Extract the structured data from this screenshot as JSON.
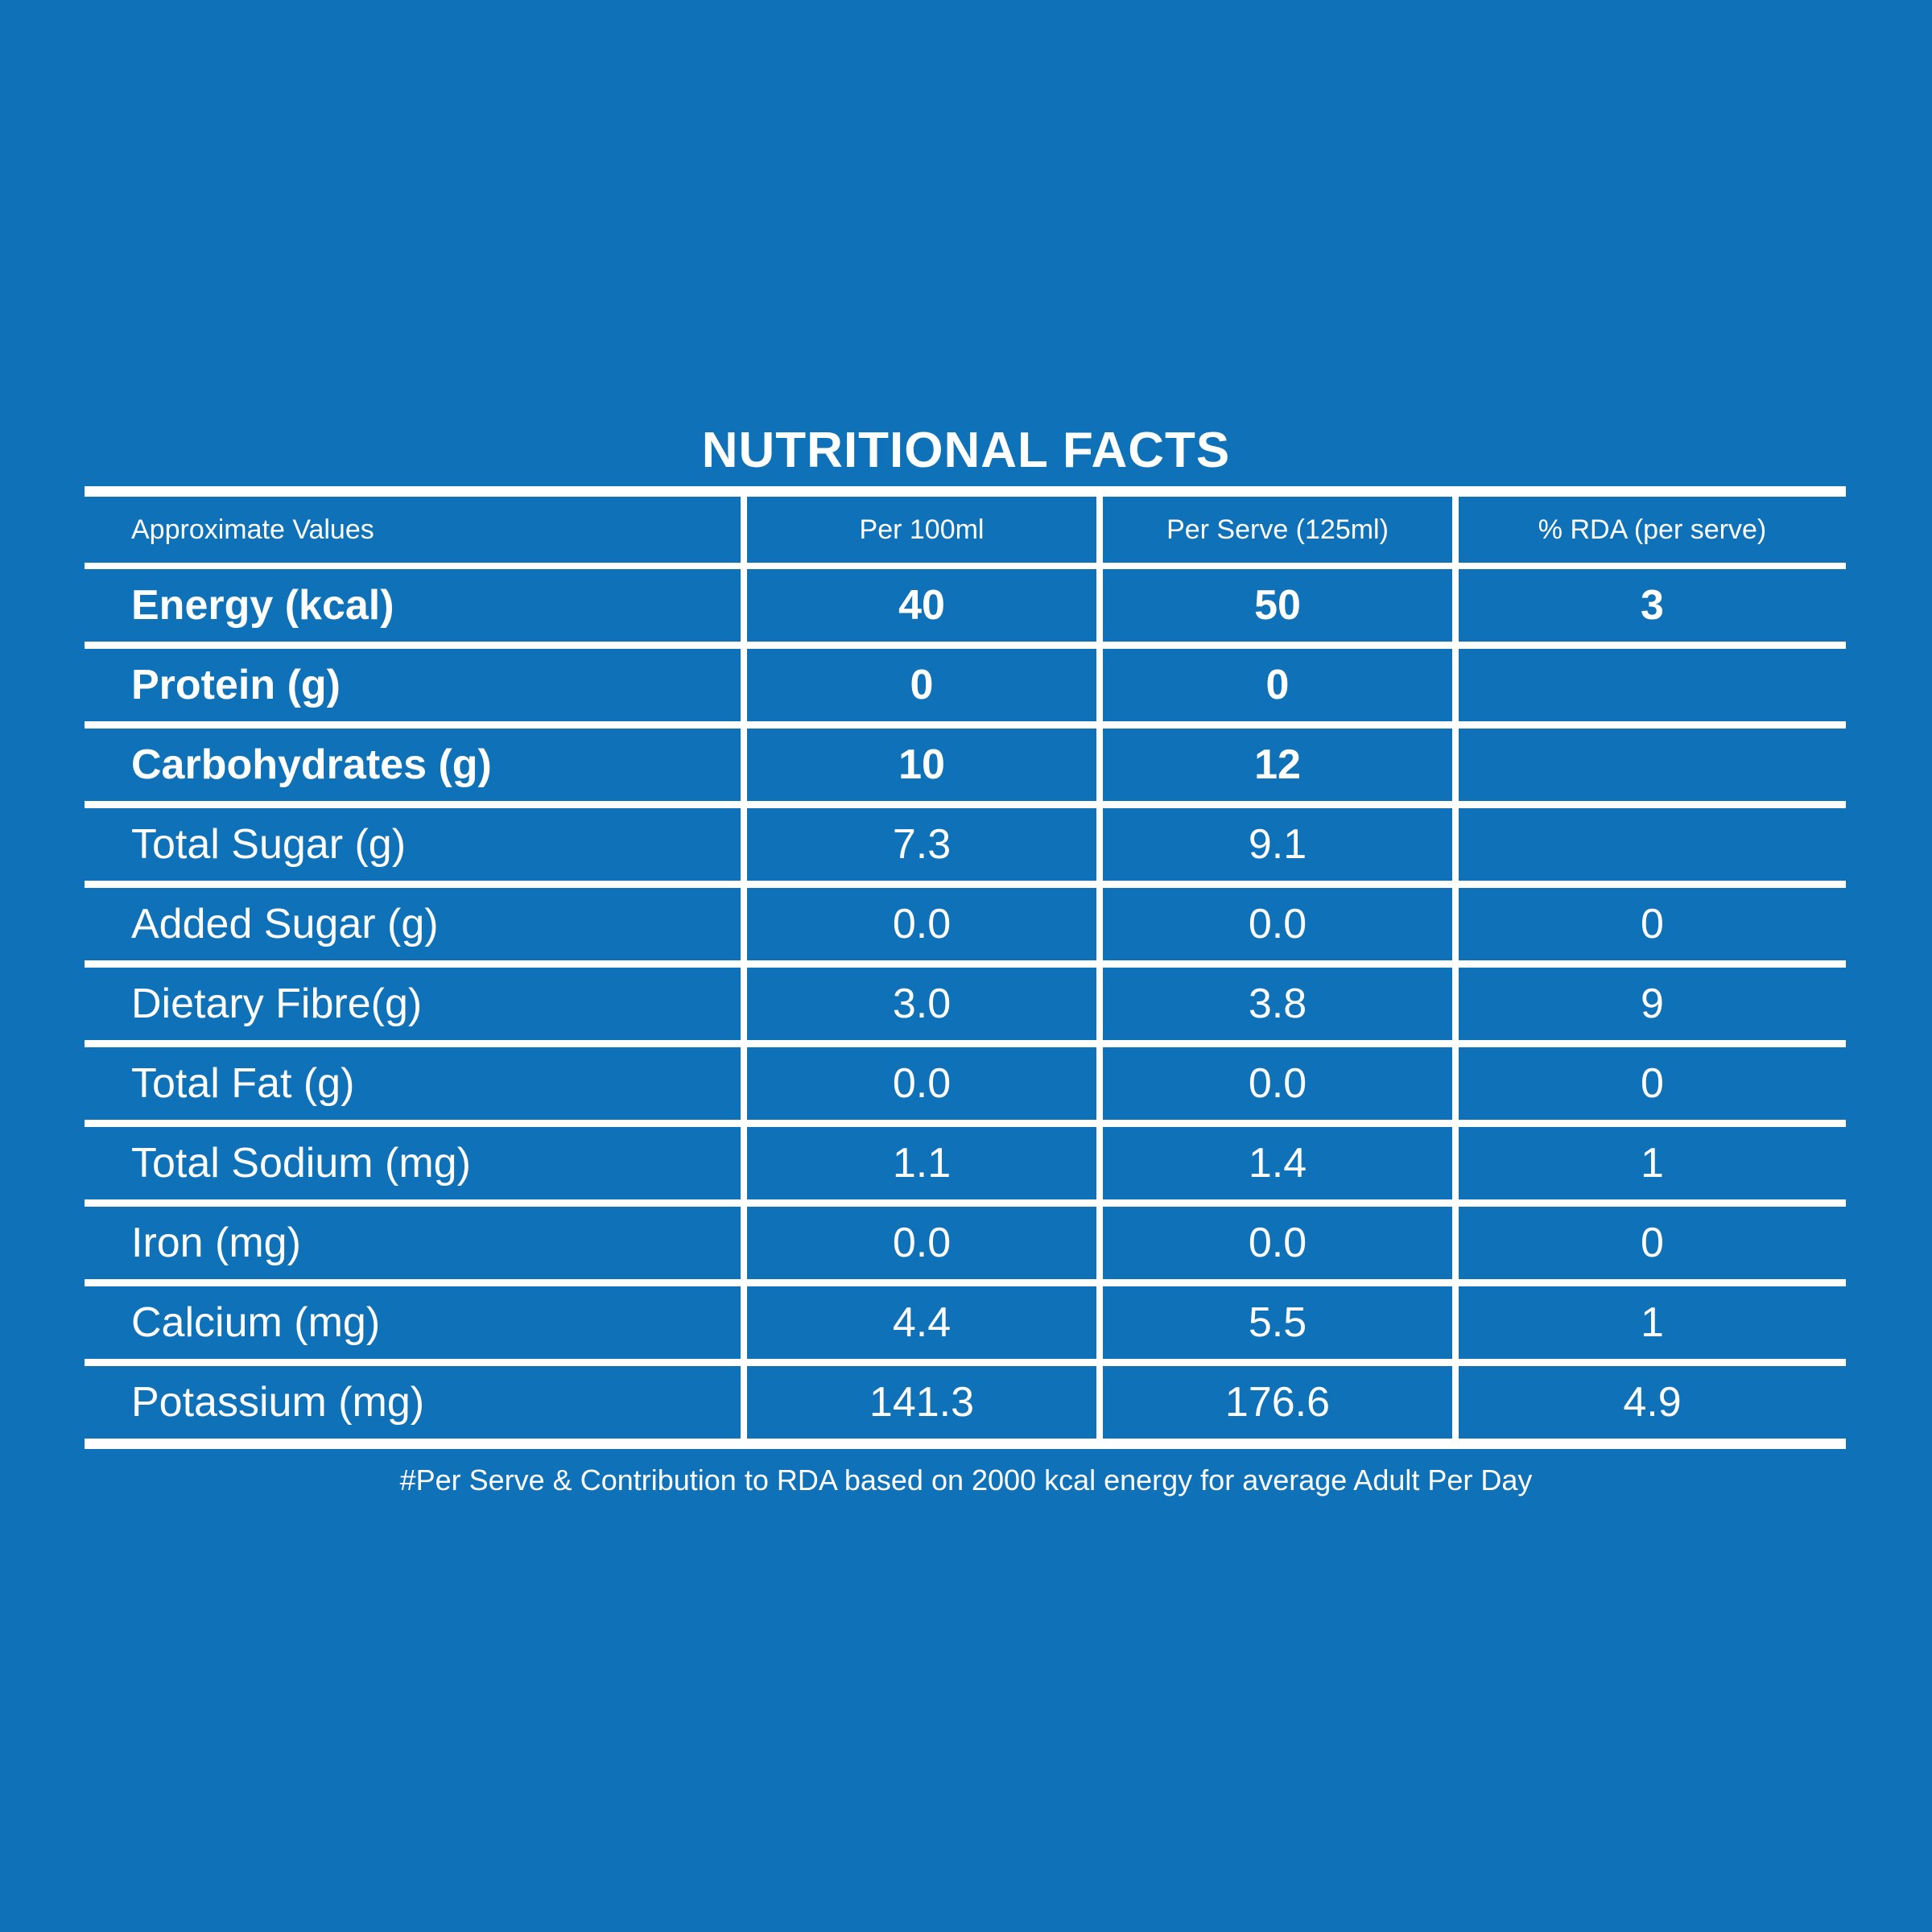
{
  "title": "NUTRITIONAL FACTS",
  "table": {
    "headers": [
      "Approximate Values",
      "Per 100ml",
      "Per Serve (125ml)",
      "% RDA (per serve)"
    ],
    "rows": [
      {
        "label": "Energy (kcal)",
        "per_100ml": "40",
        "per_serve": "50",
        "rda": "3",
        "bold": true
      },
      {
        "label": "Protein (g)",
        "per_100ml": "0",
        "per_serve": "0",
        "rda": "",
        "bold": true
      },
      {
        "label": "Carbohydrates (g)",
        "per_100ml": "10",
        "per_serve": "12",
        "rda": "",
        "bold": true
      },
      {
        "label": "Total Sugar (g)",
        "per_100ml": "7.3",
        "per_serve": "9.1",
        "rda": "",
        "bold": false
      },
      {
        "label": "Added Sugar (g)",
        "per_100ml": "0.0",
        "per_serve": "0.0",
        "rda": "0",
        "bold": false
      },
      {
        "label": "Dietary Fibre(g)",
        "per_100ml": "3.0",
        "per_serve": "3.8",
        "rda": "9",
        "bold": false
      },
      {
        "label": "Total Fat (g)",
        "per_100ml": "0.0",
        "per_serve": "0.0",
        "rda": "0",
        "bold": false
      },
      {
        "label": "Total Sodium (mg)",
        "per_100ml": "1.1",
        "per_serve": "1.4",
        "rda": "1",
        "bold": false
      },
      {
        "label": "Iron (mg)",
        "per_100ml": "0.0",
        "per_serve": "0.0",
        "rda": "0",
        "bold": false
      },
      {
        "label": "Calcium (mg)",
        "per_100ml": "4.4",
        "per_serve": "5.5",
        "rda": "1",
        "bold": false
      },
      {
        "label": "Potassium (mg)",
        "per_100ml": "141.3",
        "per_serve": "176.6",
        "rda": "4.9",
        "bold": false
      }
    ]
  },
  "footnote": "#Per Serve & Contribution to RDA based on 2000 kcal energy for average Adult Per Day",
  "colors": {
    "background": "#0F71B8",
    "text": "#FFFFFF",
    "divider": "#FFFFFF"
  }
}
